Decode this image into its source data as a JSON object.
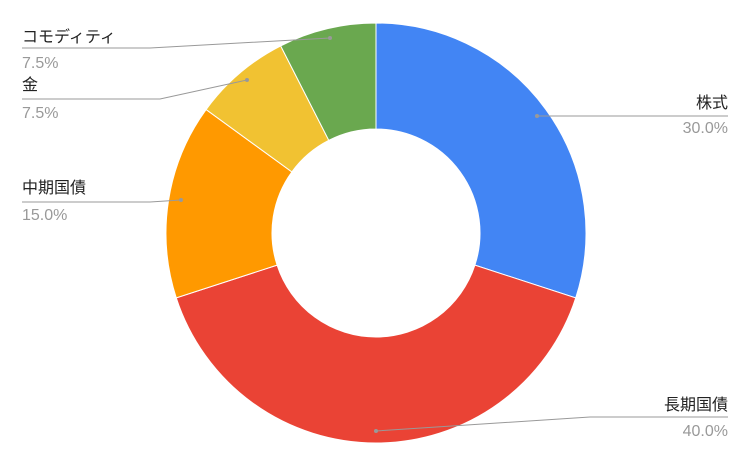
{
  "chart_data": {
    "type": "pie",
    "donut": true,
    "start": "top",
    "direction": "clockwise",
    "slices": [
      {
        "label": "株式",
        "value": 30.0,
        "display": "30.0%",
        "color": "#4285F4",
        "side": "right"
      },
      {
        "label": "長期国債",
        "value": 40.0,
        "display": "40.0%",
        "color": "#EA4335",
        "side": "right"
      },
      {
        "label": "中期国債",
        "value": 15.0,
        "display": "15.0%",
        "color": "#FF9900",
        "side": "left"
      },
      {
        "label": "金",
        "value": 7.5,
        "display": "7.5%",
        "color": "#F1C232",
        "side": "left"
      },
      {
        "label": "コモディティ",
        "value": 7.5,
        "display": "7.5%",
        "color": "#6AA84F",
        "side": "left"
      }
    ],
    "legend": "labels-with-leader-lines"
  }
}
